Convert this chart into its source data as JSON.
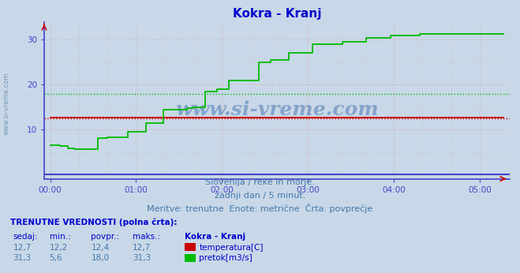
{
  "title": "Kokra - Kranj",
  "title_color": "#0000cc",
  "bg_color": "#c8d8e8",
  "plot_bg_color": "#c8d8e8",
  "fig_bg_color": "#c8d8e8",
  "xlabel_texts": [
    "00:00",
    "01:00",
    "02:00",
    "03:00",
    "04:00",
    "05:00"
  ],
  "x_ticks": [
    0,
    72,
    144,
    216,
    288,
    360
  ],
  "xlim": [
    -5,
    385
  ],
  "ylim": [
    -1,
    34
  ],
  "yticks": [
    10,
    20,
    30
  ],
  "grid_color": "#ddaaaa",
  "grid_ls": ":",
  "temp_color": "#cc0000",
  "flow_color": "#00bb00",
  "avg_temp": 12.4,
  "avg_flow": 18.0,
  "watermark_text": "www.si-vreme.com",
  "watermark_color": "#3366aa",
  "watermark_alpha": 0.45,
  "subtitle1": "Slovenija / reke in morje.",
  "subtitle2": "zadnji dan / 5 minut.",
  "subtitle3": "Meritve: trenutne  Enote: metrične  Črta: povprečje",
  "subtitle_color": "#4477aa",
  "table_header": "TRENUTNE VREDNOSTI (polna črta):",
  "table_cols": [
    "sedaj:",
    "min.:",
    "povpr.:",
    "maks.:",
    "Kokra - Kranj"
  ],
  "table_row1": [
    "12,7",
    "12,2",
    "12,4",
    "12,7"
  ],
  "table_row2": [
    "31,3",
    "5,6",
    "18,0",
    "31,3"
  ],
  "label_temp": "temperatura[C]",
  "label_flow": "pretok[m3/s]",
  "spine_color": "#4444cc",
  "tick_color": "#4444cc",
  "baseline_color": "#4444cc",
  "flow_breakpoints": [
    [
      0,
      6.5
    ],
    [
      8,
      6.3
    ],
    [
      15,
      5.8
    ],
    [
      20,
      5.6
    ],
    [
      35,
      5.6
    ],
    [
      40,
      8.0
    ],
    [
      48,
      8.3
    ],
    [
      60,
      8.3
    ],
    [
      65,
      9.5
    ],
    [
      72,
      9.5
    ],
    [
      80,
      11.5
    ],
    [
      90,
      11.5
    ],
    [
      95,
      14.5
    ],
    [
      105,
      14.5
    ],
    [
      115,
      14.8
    ],
    [
      120,
      15.0
    ],
    [
      130,
      18.5
    ],
    [
      140,
      19.0
    ],
    [
      150,
      21.0
    ],
    [
      165,
      21.0
    ],
    [
      175,
      25.0
    ],
    [
      185,
      25.5
    ],
    [
      200,
      27.0
    ],
    [
      216,
      27.0
    ],
    [
      220,
      29.0
    ],
    [
      235,
      29.0
    ],
    [
      245,
      29.5
    ],
    [
      255,
      29.5
    ],
    [
      265,
      30.5
    ],
    [
      275,
      30.5
    ],
    [
      285,
      31.0
    ],
    [
      295,
      31.0
    ],
    [
      310,
      31.3
    ],
    [
      380,
      31.3
    ]
  ],
  "temp_breakpoints": [
    [
      0,
      12.7
    ],
    [
      380,
      12.7
    ]
  ]
}
